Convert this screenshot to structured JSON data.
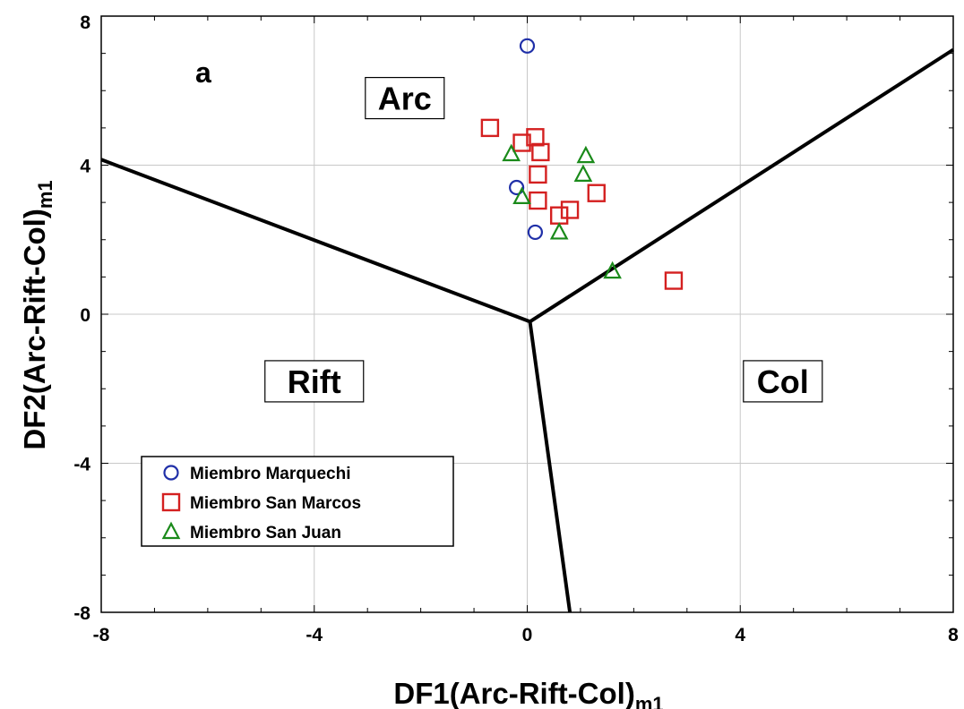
{
  "chart_data": {
    "type": "scatter",
    "panel_label": "a",
    "xlabel": {
      "main": "DF1(Arc-Rift-Col)",
      "sub": "m1"
    },
    "ylabel": {
      "main": "DF2(Arc-Rift-Col)",
      "sub": "m1"
    },
    "xlim": [
      -8,
      8
    ],
    "ylim": [
      -8,
      8
    ],
    "xticks": [
      "-8",
      "-4",
      "0",
      "4",
      "8"
    ],
    "yticks": [
      "-8",
      "-4",
      "0",
      "4",
      "8"
    ],
    "grid": true,
    "legend_position": "bottom-left",
    "regions": [
      {
        "label": "Arc",
        "at": [
          -2.3,
          5.8
        ]
      },
      {
        "label": "Rift",
        "at": [
          -4.0,
          -1.8
        ]
      },
      {
        "label": "Col",
        "at": [
          4.8,
          -1.8
        ]
      }
    ],
    "boundaries": [
      {
        "name": "arc-rift",
        "points": [
          [
            -8,
            4.15
          ],
          [
            0.05,
            -0.2
          ]
        ]
      },
      {
        "name": "arc-col",
        "points": [
          [
            0.05,
            -0.2
          ],
          [
            8,
            7.1
          ]
        ]
      },
      {
        "name": "rift-col",
        "points": [
          [
            0.05,
            -0.2
          ],
          [
            0.8,
            -8
          ]
        ]
      }
    ],
    "series": [
      {
        "name": "Miembro Marquechi",
        "marker": "circle",
        "color": "#1f2fa8",
        "points": [
          [
            0.0,
            7.2
          ],
          [
            -0.2,
            3.4
          ],
          [
            0.15,
            2.2
          ]
        ]
      },
      {
        "name": "Miembro San  Marcos",
        "marker": "square",
        "color": "#d42020",
        "points": [
          [
            -0.7,
            5.0
          ],
          [
            -0.1,
            4.6
          ],
          [
            0.15,
            4.75
          ],
          [
            0.25,
            4.35
          ],
          [
            0.2,
            3.75
          ],
          [
            0.2,
            3.05
          ],
          [
            0.6,
            2.65
          ],
          [
            0.8,
            2.8
          ],
          [
            1.3,
            3.25
          ],
          [
            2.75,
            0.9
          ]
        ]
      },
      {
        "name": "Miembro San Juan",
        "marker": "triangle",
        "color": "#1a8a1a",
        "points": [
          [
            -0.3,
            4.3
          ],
          [
            -0.1,
            3.15
          ],
          [
            1.1,
            4.25
          ],
          [
            1.05,
            3.75
          ],
          [
            0.6,
            2.2
          ],
          [
            1.6,
            1.15
          ]
        ]
      }
    ]
  }
}
